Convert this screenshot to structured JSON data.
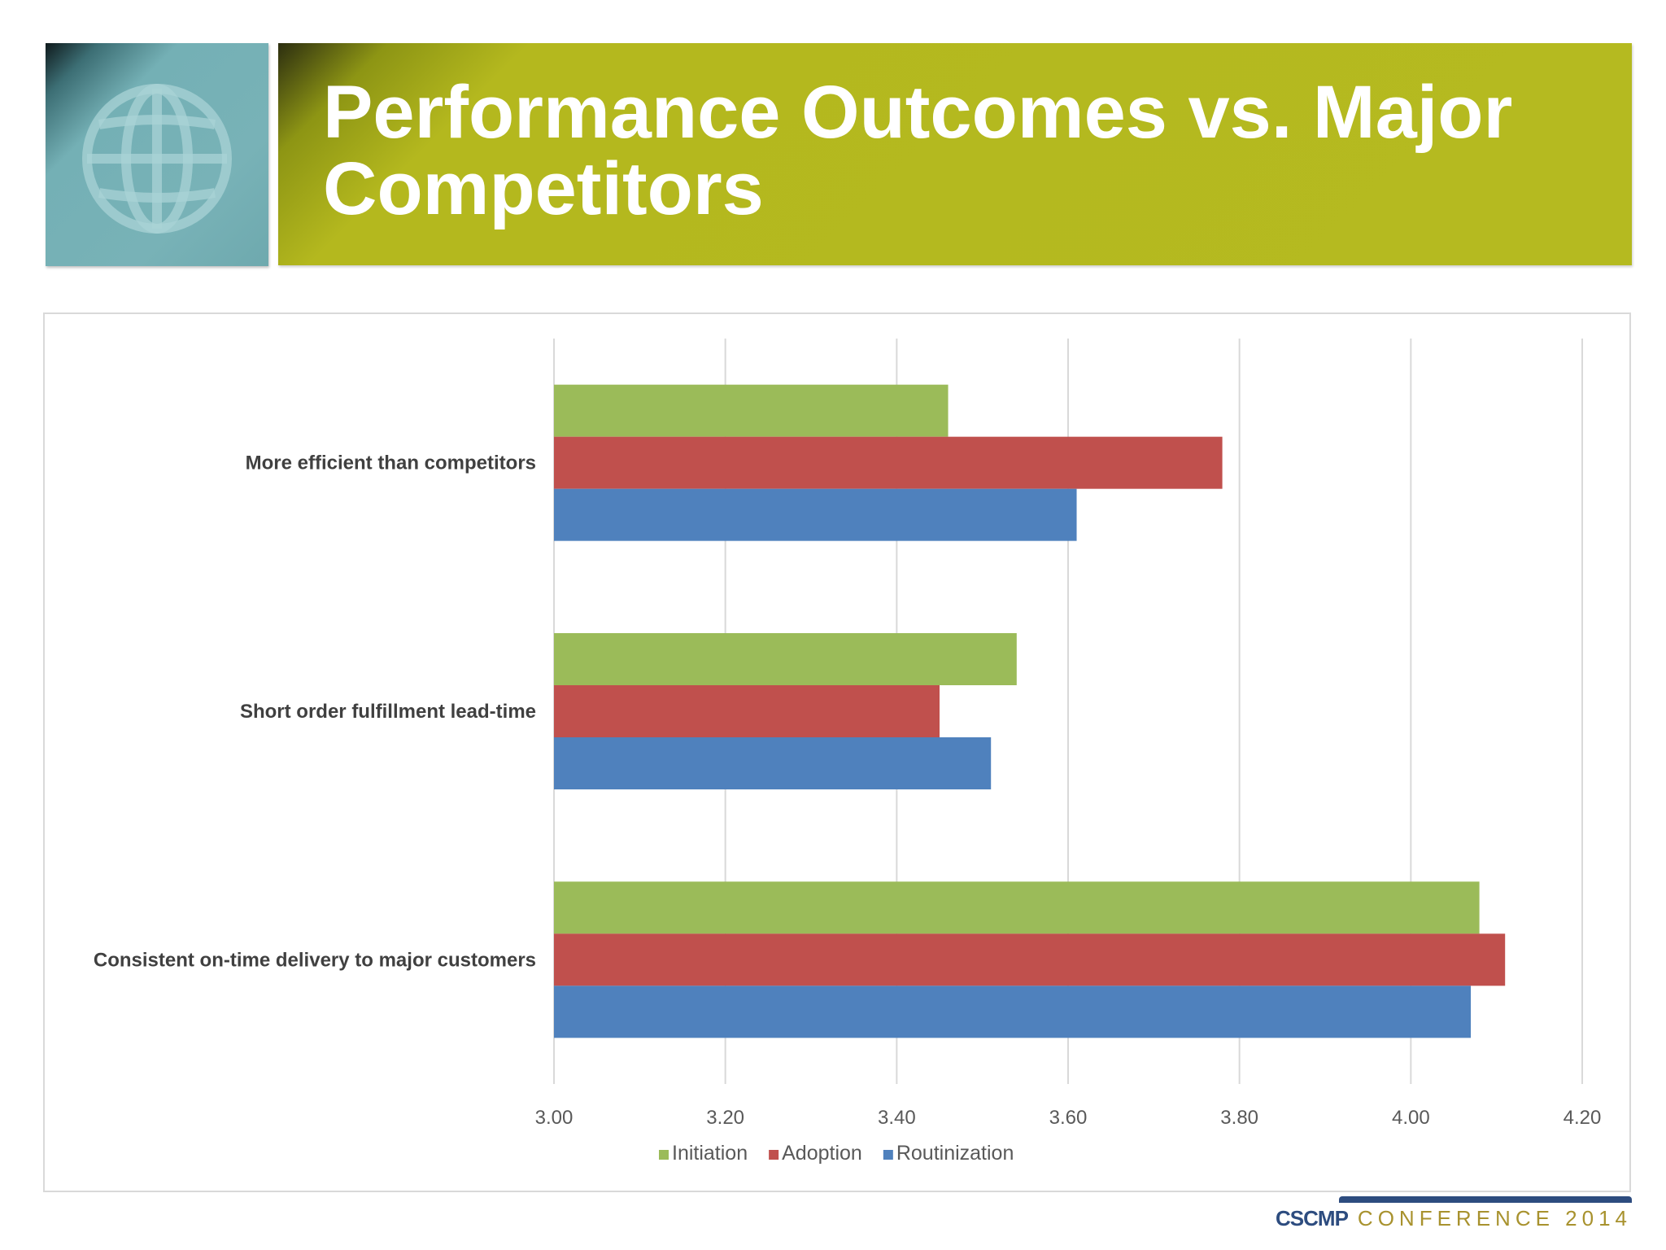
{
  "slide": {
    "title": "Performance Outcomes vs. Major Competitors",
    "logo": {
      "org": "CSCMP",
      "event": "CONFERENCE 2014"
    }
  },
  "icons": {
    "globe": "globe-icon"
  },
  "colors": {
    "banner": "#b5ba20",
    "globe_tile": "#78b2b7",
    "initiation": "#9bbb59",
    "adoption": "#c0504d",
    "routinization": "#4f81bd"
  },
  "chart_data": {
    "type": "bar",
    "orientation": "horizontal",
    "categories": [
      "More efficient than competitors",
      "Short order fulfillment lead-time",
      "Consistent on-time delivery to major customers"
    ],
    "series": [
      {
        "name": "Initiation",
        "values": [
          3.46,
          3.54,
          4.08
        ],
        "color": "#9bbb59"
      },
      {
        "name": "Adoption",
        "values": [
          3.78,
          3.45,
          4.11
        ],
        "color": "#c0504d"
      },
      {
        "name": "Routinization",
        "values": [
          3.61,
          3.51,
          4.07
        ],
        "color": "#4f81bd"
      }
    ],
    "xlim": [
      3.0,
      4.2
    ],
    "xticks": [
      "3.00",
      "3.20",
      "3.40",
      "3.60",
      "3.80",
      "4.00",
      "4.20"
    ],
    "xlabel": "",
    "ylabel": "",
    "grid": "vertical",
    "legend_position": "bottom"
  }
}
